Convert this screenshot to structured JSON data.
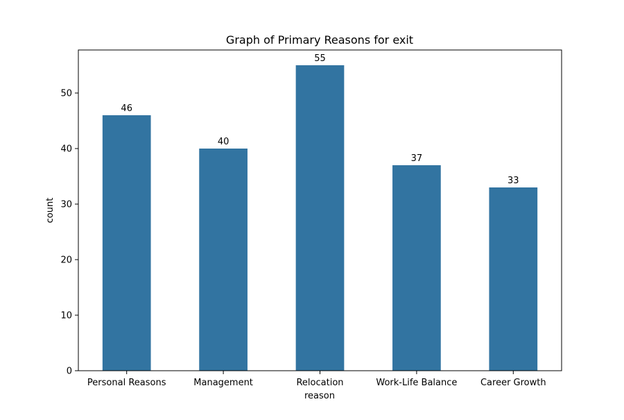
{
  "chart_data": {
    "type": "bar",
    "title": "Graph of Primary Reasons for exit",
    "xlabel": "reason",
    "ylabel": "count",
    "categories": [
      "Personal Reasons",
      "Management",
      "Relocation",
      "Work-Life Balance",
      "Career Growth"
    ],
    "values": [
      46,
      40,
      55,
      37,
      33
    ],
    "data_labels": [
      "46",
      "40",
      "55",
      "37",
      "33"
    ],
    "ylim": [
      0,
      57.75
    ],
    "yticks": [
      0,
      10,
      20,
      30,
      40,
      50
    ],
    "grid": false,
    "legend": "none",
    "bar_color": "#3274a1"
  }
}
